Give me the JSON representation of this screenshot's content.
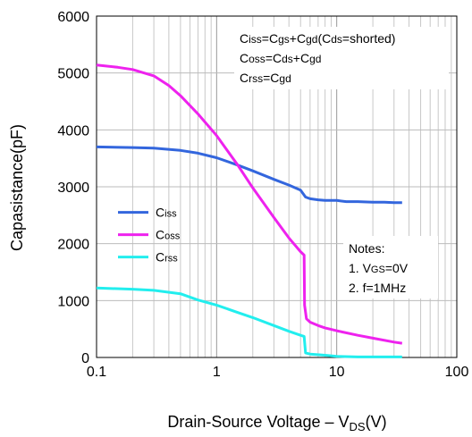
{
  "chart_data": {
    "type": "line",
    "xscale": "log",
    "xlim": [
      0.1,
      100
    ],
    "ylim": [
      0,
      6000
    ],
    "grid": true,
    "xticks": [
      "0.1",
      "1",
      "10",
      "100"
    ],
    "yticks": [
      "0",
      "1000",
      "2000",
      "3000",
      "4000",
      "5000",
      "6000"
    ],
    "xticks_values": [
      0.1,
      1,
      10,
      100
    ],
    "yticks_values": [
      0,
      1000,
      2000,
      3000,
      4000,
      5000,
      6000
    ],
    "ylabel": "Capasistance(pF)",
    "xlabel": {
      "main": "Drain-Source Voltage  –  V",
      "sub": "DS",
      "unit": "(V)"
    },
    "legend_position": "middle-left",
    "series": [
      {
        "name": "Ciss",
        "name_main": "C",
        "name_sub": "iss",
        "color": "#3366dd",
        "x": [
          0.1,
          0.2,
          0.3,
          0.5,
          0.7,
          1.0,
          1.5,
          2.0,
          3.0,
          4.0,
          5.0,
          5.5,
          6.0,
          7.0,
          8.0,
          10,
          12,
          15,
          20,
          25,
          30,
          35
        ],
        "y": [
          3700,
          3690,
          3680,
          3640,
          3590,
          3510,
          3380,
          3280,
          3130,
          3030,
          2940,
          2820,
          2790,
          2770,
          2760,
          2760,
          2740,
          2740,
          2730,
          2730,
          2720,
          2720
        ]
      },
      {
        "name": "Coss",
        "name_main": "C",
        "name_sub": "oss",
        "color": "#ee22ee",
        "x": [
          0.1,
          0.15,
          0.2,
          0.3,
          0.4,
          0.5,
          0.7,
          1.0,
          1.5,
          2.0,
          3.0,
          4.0,
          5.0,
          5.35,
          5.4,
          5.6,
          6.0,
          7.0,
          8.0,
          10,
          15,
          20,
          30,
          35
        ],
        "y": [
          5140,
          5100,
          5060,
          4950,
          4780,
          4600,
          4280,
          3900,
          3380,
          2980,
          2460,
          2100,
          1860,
          1800,
          920,
          680,
          620,
          560,
          520,
          470,
          390,
          340,
          270,
          250
        ]
      },
      {
        "name": "Crss",
        "name_main": "C",
        "name_sub": "rss",
        "color": "#22eeee",
        "x": [
          0.1,
          0.2,
          0.3,
          0.5,
          0.7,
          1.0,
          1.5,
          2.0,
          3.0,
          4.0,
          5.0,
          5.35,
          5.5,
          6.0,
          8.0,
          10,
          15,
          20,
          35
        ],
        "y": [
          1220,
          1200,
          1180,
          1120,
          1010,
          920,
          790,
          700,
          560,
          460,
          390,
          370,
          80,
          60,
          40,
          20,
          10,
          10,
          10
        ]
      }
    ],
    "annotations": {
      "formulas": [
        {
          "parts": [
            {
              "t": "C"
            },
            {
              "t": "iss",
              "small": true
            },
            {
              "t": "=C"
            },
            {
              "t": "gs",
              "small": true
            },
            {
              "t": "+C"
            },
            {
              "t": "gd",
              "small": true
            },
            {
              "t": "(C"
            },
            {
              "t": "ds",
              "small": true
            },
            {
              "t": "=shorted)"
            }
          ]
        },
        {
          "parts": [
            {
              "t": "C"
            },
            {
              "t": "oss",
              "small": true
            },
            {
              "t": "=C"
            },
            {
              "t": "ds",
              "small": true
            },
            {
              "t": "+C"
            },
            {
              "t": "gd",
              "small": true
            }
          ]
        },
        {
          "parts": [
            {
              "t": "C"
            },
            {
              "t": "rss",
              "small": true
            },
            {
              "t": "=C"
            },
            {
              "t": "gd",
              "small": true
            }
          ]
        }
      ],
      "notes": {
        "title": "Notes:",
        "lines": [
          {
            "parts": [
              {
                "t": "1. V"
              },
              {
                "t": "GS",
                "sub": true
              },
              {
                "t": "=0V"
              }
            ]
          },
          {
            "parts": [
              {
                "t": "2. f=1MHz"
              }
            ]
          }
        ]
      }
    }
  }
}
